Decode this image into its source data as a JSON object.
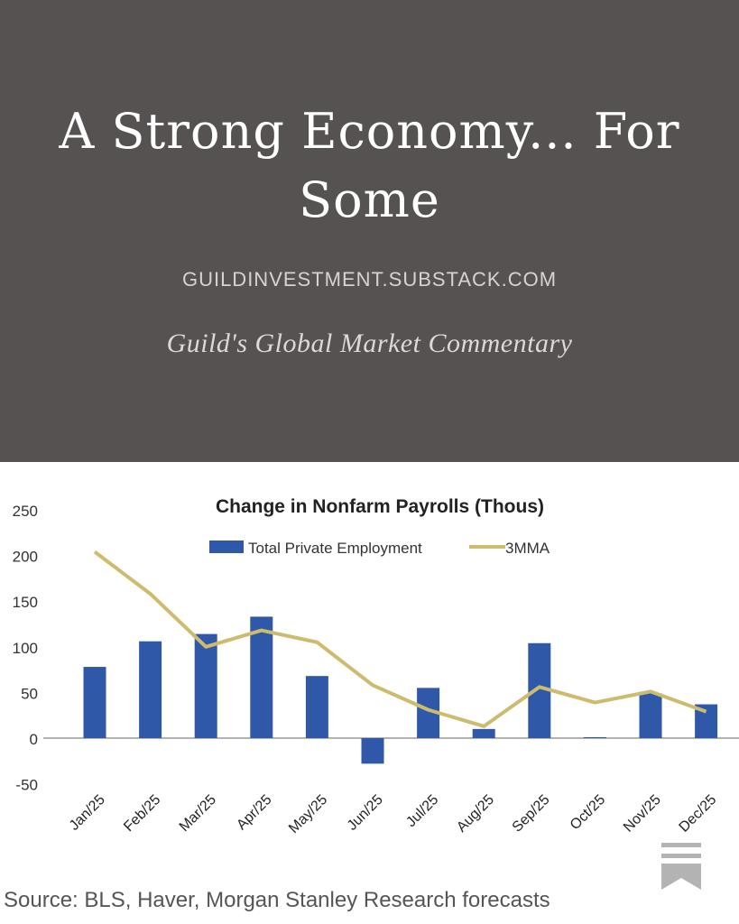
{
  "header": {
    "title": "A Strong Economy... For Some",
    "site": "GUILDINVESTMENT.SUBSTACK.COM",
    "subtitle": "Guild's Global Market Commentary"
  },
  "chart_data": {
    "type": "bar",
    "title": "Change in Nonfarm Payrolls (Thous)",
    "categories": [
      "Jan/25",
      "Feb/25",
      "Mar/25",
      "Apr/25",
      "May/25",
      "Jun/25",
      "Jul/25",
      "Aug/25",
      "Sep/25",
      "Oct/25",
      "Nov/25",
      "Dec/25"
    ],
    "series": [
      {
        "name": "Total Private Employment",
        "type": "bar",
        "color": "#2f58a8",
        "values": [
          78,
          106,
          114,
          133,
          68,
          -28,
          55,
          10,
          104,
          1,
          49,
          37
        ]
      },
      {
        "name": "3MMA",
        "type": "line",
        "color": "#cdbb6e",
        "values": [
          204,
          158,
          100,
          118,
          105,
          58,
          31,
          13,
          56,
          39,
          51,
          29
        ]
      }
    ],
    "yticks": [
      250,
      200,
      150,
      100,
      50,
      0,
      -50
    ],
    "ylim": [
      -50,
      250
    ],
    "legend": "top-center",
    "grid": false
  },
  "source": "Source: BLS, Haver, Morgan Stanley Research forecasts"
}
